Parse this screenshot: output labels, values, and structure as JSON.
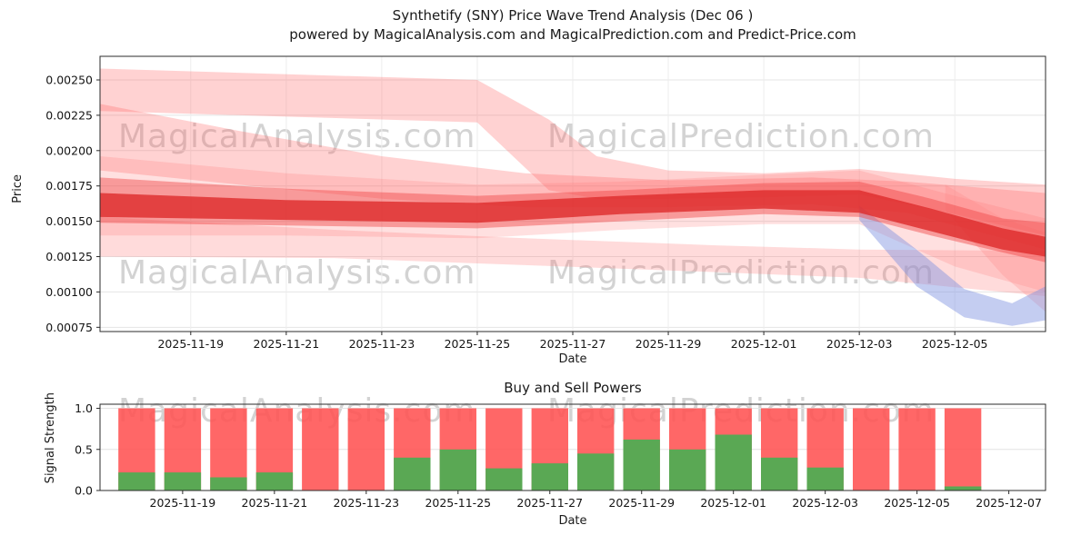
{
  "title": {
    "line1": "Synthetify (SNY) Price Wave Trend Analysis (Dec 06 )",
    "line2": "powered by MagicalAnalysis.com and MagicalPrediction.com and Predict-Price.com"
  },
  "watermarks": {
    "analysis": "MagicalAnalysis.com",
    "prediction": "MagicalPrediction.com"
  },
  "chart_data": [
    {
      "type": "area",
      "title": "Price Wave Trend Analysis",
      "xlabel": "Date",
      "ylabel": "Price",
      "grid": true,
      "ylim": [
        0.00072,
        0.002667
      ],
      "xlim": [
        0.1,
        19.9
      ],
      "x_unit": "days since 2025-11-17",
      "yticks": [
        {
          "v": 0.0025,
          "label": "0.00250"
        },
        {
          "v": 0.00225,
          "label": "0.00225"
        },
        {
          "v": 0.002,
          "label": "0.00200"
        },
        {
          "v": 0.00175,
          "label": "0.00175"
        },
        {
          "v": 0.0015,
          "label": "0.00150"
        },
        {
          "v": 0.00125,
          "label": "0.00125"
        },
        {
          "v": 0.001,
          "label": "0.00100"
        },
        {
          "v": 0.00075,
          "label": "0.00075"
        }
      ],
      "xticks": [
        {
          "day": 2,
          "label": "2025-11-19"
        },
        {
          "day": 4,
          "label": "2025-11-21"
        },
        {
          "day": 6,
          "label": "2025-11-23"
        },
        {
          "day": 8,
          "label": "2025-11-25"
        },
        {
          "day": 10,
          "label": "2025-11-27"
        },
        {
          "day": 12,
          "label": "2025-11-29"
        },
        {
          "day": 14,
          "label": "2025-12-01"
        },
        {
          "day": 16,
          "label": "2025-12-03"
        },
        {
          "day": 18,
          "label": "2025-12-05"
        }
      ],
      "bands": [
        {
          "name": "upper-forecast-wide",
          "color": "#ff6b6b",
          "opacity": 0.3,
          "points": [
            [
              0.1,
              0.00258,
              0.00228
            ],
            [
              8.0,
              0.0025,
              0.0022
            ],
            [
              9.5,
              0.00222,
              0.00172
            ],
            [
              10.5,
              0.00196,
              0.00166
            ],
            [
              12,
              0.00186,
              0.00166
            ],
            [
              14,
              0.00184,
              0.00167
            ],
            [
              16,
              0.00187,
              0.00169
            ],
            [
              18,
              0.0018,
              0.00155
            ],
            [
              19.9,
              0.00176,
              0.0014
            ]
          ]
        },
        {
          "name": "upper-mid",
          "color": "#ff5f5f",
          "opacity": 0.28,
          "points": [
            [
              0.1,
              0.00233,
              0.00186
            ],
            [
              3,
              0.00214,
              0.00176
            ],
            [
              6,
              0.00196,
              0.00166
            ],
            [
              9,
              0.00184,
              0.0016
            ],
            [
              12,
              0.00179,
              0.0016
            ],
            [
              15,
              0.00181,
              0.00162
            ],
            [
              17,
              0.00178,
              0.00156
            ],
            [
              19.9,
              0.0017,
              0.0013
            ]
          ]
        },
        {
          "name": "envelope-wide",
          "color": "#ff7373",
          "opacity": 0.22,
          "points": [
            [
              0.1,
              0.00196,
              0.0014
            ],
            [
              4,
              0.00184,
              0.0014
            ],
            [
              8,
              0.00176,
              0.00138
            ],
            [
              11,
              0.00178,
              0.00144
            ],
            [
              14,
              0.00183,
              0.00148
            ],
            [
              16,
              0.00186,
              0.00148
            ],
            [
              18,
              0.00168,
              0.00118
            ],
            [
              19.9,
              0.00152,
              0.001
            ]
          ]
        },
        {
          "name": "lower-light",
          "color": "#ff7373",
          "opacity": 0.26,
          "points": [
            [
              0.1,
              0.00153,
              0.00125
            ],
            [
              5,
              0.00144,
              0.00124
            ],
            [
              9,
              0.00138,
              0.00119
            ],
            [
              13,
              0.00133,
              0.00114
            ],
            [
              16,
              0.0013,
              0.0011
            ],
            [
              19.9,
              0.00129,
              0.00097
            ]
          ]
        },
        {
          "name": "right-diagonal",
          "color": "#ff8a8a",
          "opacity": 0.3,
          "points": [
            [
              17.8,
              0.00176,
              0.00158
            ],
            [
              19.0,
              0.00152,
              0.00112
            ],
            [
              19.9,
              0.00142,
              0.00086
            ]
          ]
        },
        {
          "name": "blue-dip",
          "color": "#7d90e0",
          "opacity": 0.45,
          "points": [
            [
              16.0,
              0.00161,
              0.00151
            ],
            [
              17.2,
              0.0013,
              0.00104
            ],
            [
              18.2,
              0.00102,
              0.00082
            ],
            [
              19.2,
              0.00092,
              0.00076
            ],
            [
              19.9,
              0.00104,
              0.0008
            ]
          ]
        },
        {
          "name": "core-outer",
          "color": "#f04545",
          "opacity": 0.45,
          "points": [
            [
              0.1,
              0.00181,
              0.00149
            ],
            [
              4,
              0.00173,
              0.00147
            ],
            [
              8,
              0.00168,
              0.00145
            ],
            [
              11,
              0.00172,
              0.0015
            ],
            [
              14,
              0.00177,
              0.00155
            ],
            [
              16,
              0.00178,
              0.00153
            ],
            [
              17.5,
              0.00166,
              0.0014
            ],
            [
              19,
              0.00152,
              0.00128
            ],
            [
              19.9,
              0.00149,
              0.00121
            ]
          ]
        },
        {
          "name": "core",
          "color": "#dd2b2b",
          "opacity": 0.8,
          "points": [
            [
              0.1,
              0.0017,
              0.00153
            ],
            [
              4,
              0.00165,
              0.00151
            ],
            [
              8,
              0.00163,
              0.00149
            ],
            [
              11,
              0.00168,
              0.00155
            ],
            [
              14,
              0.00172,
              0.00159
            ],
            [
              16,
              0.00172,
              0.00156
            ],
            [
              17.5,
              0.00159,
              0.00143
            ],
            [
              19,
              0.00145,
              0.0013
            ],
            [
              19.9,
              0.00139,
              0.00125
            ]
          ]
        }
      ]
    },
    {
      "type": "bar",
      "title": "Buy and Sell Powers",
      "xlabel": "Date",
      "ylabel": "Signal Strength",
      "grid": true,
      "ylim": [
        0,
        1.05
      ],
      "xlim": [
        0.2,
        20.8
      ],
      "yticks": [
        {
          "v": 0.0,
          "label": "0.0"
        },
        {
          "v": 0.5,
          "label": "0.5"
        },
        {
          "v": 1.0,
          "label": "1.0"
        }
      ],
      "xticks": [
        {
          "day": 2,
          "label": "2025-11-19"
        },
        {
          "day": 4,
          "label": "2025-11-21"
        },
        {
          "day": 6,
          "label": "2025-11-23"
        },
        {
          "day": 8,
          "label": "2025-11-25"
        },
        {
          "day": 10,
          "label": "2025-11-27"
        },
        {
          "day": 12,
          "label": "2025-11-29"
        },
        {
          "day": 14,
          "label": "2025-12-01"
        },
        {
          "day": 16,
          "label": "2025-12-03"
        },
        {
          "day": 18,
          "label": "2025-12-05"
        },
        {
          "day": 20,
          "label": "2025-12-07"
        }
      ],
      "categories": [
        "2025-11-18",
        "2025-11-19",
        "2025-11-20",
        "2025-11-21",
        "2025-11-22",
        "2025-11-23",
        "2025-11-24",
        "2025-11-25",
        "2025-11-26",
        "2025-11-27",
        "2025-11-28",
        "2025-11-29",
        "2025-11-30",
        "2025-12-01",
        "2025-12-02",
        "2025-12-03",
        "2025-12-04",
        "2025-12-05",
        "2025-12-06"
      ],
      "series": [
        {
          "name": "Sell",
          "values": [
            1.0,
            1.0,
            1.0,
            1.0,
            1.0,
            1.0,
            1.0,
            1.0,
            1.0,
            1.0,
            1.0,
            1.0,
            1.0,
            1.0,
            1.0,
            1.0,
            1.0,
            1.0,
            1.0
          ]
        },
        {
          "name": "Buy",
          "values": [
            0.22,
            0.22,
            0.16,
            0.22,
            0.0,
            0.0,
            0.4,
            0.5,
            0.27,
            0.33,
            0.45,
            0.62,
            0.5,
            0.68,
            0.4,
            0.28,
            0.0,
            0.0,
            0.05
          ]
        }
      ],
      "colors": {
        "sell": "#ff5252",
        "buy": "#4cae52"
      }
    }
  ]
}
